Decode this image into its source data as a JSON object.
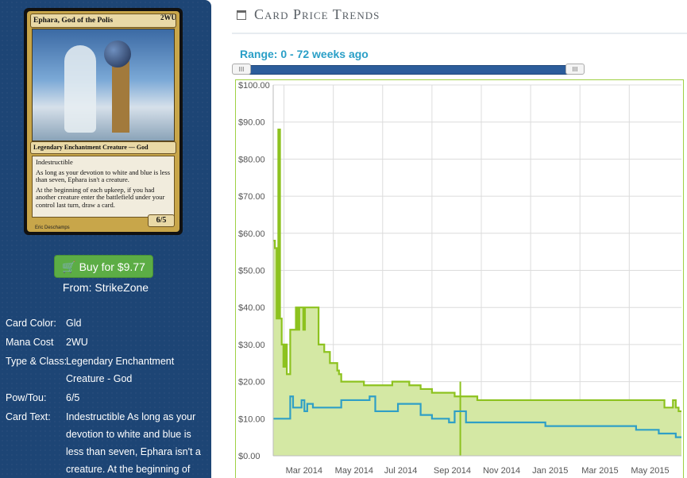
{
  "card": {
    "name": "Ephara, God of the Polis",
    "mana_symbols": "2WU",
    "type_line": "Legendary Enchantment Creature — God",
    "rules_1": "Indestructible",
    "rules_2": "As long as your devotion to white and blue is less than seven, Ephara isn't a creature.",
    "rules_3": "At the beginning of each upkeep, if you had another creature enter the battlefield under your control last turn, draw a card.",
    "pt": "6/5",
    "artist": "Eric Deschamps"
  },
  "buy": {
    "label": "Buy for $9.77",
    "from": "From: StrikeZone"
  },
  "info": {
    "color_label": "Card Color:",
    "color_value": "Gld",
    "mana_label": "Mana Cost",
    "mana_value": "2WU",
    "type_label": "Type & Class:",
    "type_value_1": "Legendary Enchantment",
    "type_value_2": "Creature - God",
    "pow_label": "Pow/Tou:",
    "pow_value": "6/5",
    "text_label": "Card Text:",
    "text_value_1": "Indestructible As long as your",
    "text_value_2": "devotion to white and blue is",
    "text_value_3": "less than seven, Ephara isn't a",
    "text_value_4": "creature. At the beginning of"
  },
  "heading": "Card Price Trends",
  "range_label": "Range: 0 - 72 weeks ago",
  "slider": {
    "min_weeks_ago": 0,
    "max_weeks_ago": 72,
    "handle_glyph": "III"
  },
  "colors": {
    "sidebar": "#1d4575",
    "high_series": "#8dc21f",
    "low_series": "#2f9fc6",
    "fill": "#d4e8a4",
    "button": "#5cad45"
  },
  "chart_data": {
    "type": "area",
    "y_ticks": [
      "$0.00",
      "$10.00",
      "$20.00",
      "$30.00",
      "$40.00",
      "$50.00",
      "$60.00",
      "$70.00",
      "$80.00",
      "$90.00",
      "$100.00"
    ],
    "x_ticks": [
      "Mar 2014",
      "May 2014",
      "Jul 2014",
      "Sep 2014",
      "Nov 2014",
      "Jan 2015",
      "Mar 2015",
      "May 2015"
    ],
    "ylim": [
      0,
      100
    ],
    "grid": true,
    "series": [
      {
        "values_x_week": [
          0,
          0.3,
          0.6,
          0.9,
          1.2,
          1.5,
          1.8,
          2.1,
          2.4,
          3,
          3.6,
          4,
          4.3,
          4.6,
          5,
          5.3,
          5.6,
          6,
          7,
          8,
          9,
          10,
          11,
          11.3,
          11.6,
          12,
          12.5,
          13,
          14,
          15,
          16,
          17,
          18,
          19,
          20,
          21,
          22,
          24,
          26,
          28,
          30,
          32,
          34,
          36,
          37,
          37.2,
          37.4,
          38,
          40,
          42,
          44,
          46,
          48,
          50,
          52,
          54,
          56,
          58,
          60,
          62,
          64,
          66,
          68,
          69,
          70,
          70.5,
          71,
          71.5,
          72
        ],
        "values": [
          58,
          56,
          37,
          88,
          37,
          30,
          24,
          30,
          22,
          34,
          34,
          40,
          34,
          40,
          40,
          34,
          40,
          40,
          40,
          30,
          28,
          25,
          25,
          23,
          22,
          20,
          20,
          20,
          20,
          20,
          19,
          19,
          19,
          19,
          19,
          20,
          20,
          19,
          18,
          17,
          17,
          16,
          16,
          15,
          15,
          15,
          15,
          15,
          15,
          15,
          15,
          15,
          15,
          15,
          15,
          15,
          15,
          15,
          15,
          15,
          15,
          15,
          15,
          13,
          13,
          15,
          13,
          12,
          12
        ],
        "color": "#8dc21f"
      },
      {
        "values_x_week": [
          0,
          1,
          2,
          3,
          3.5,
          4,
          5,
          5.5,
          6,
          7,
          8,
          10,
          12,
          13,
          14,
          15,
          16,
          17,
          18,
          20,
          22,
          24,
          26,
          28,
          30,
          31,
          32,
          33,
          34,
          36,
          38,
          40,
          44,
          48,
          52,
          56,
          60,
          64,
          68,
          70,
          71,
          72
        ],
        "values": [
          10,
          10,
          10,
          16,
          13,
          13,
          15,
          12,
          14,
          13,
          13,
          13,
          15,
          15,
          15,
          15,
          15,
          16,
          12,
          12,
          14,
          14,
          11,
          10,
          10,
          9,
          12,
          12,
          9,
          9,
          9,
          9,
          9,
          8,
          8,
          8,
          8,
          7,
          6,
          6,
          5,
          5
        ],
        "color": "#2f9fc6"
      }
    ]
  }
}
